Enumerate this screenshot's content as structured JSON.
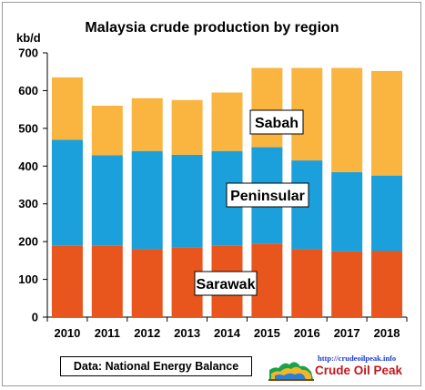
{
  "chart_data": {
    "type": "bar",
    "stacked": true,
    "title": "Malaysia crude production by region",
    "ylabel": "kb/d",
    "xlabel": "",
    "ylim": [
      0,
      700
    ],
    "yticks": [
      0,
      100,
      200,
      300,
      400,
      500,
      600,
      700
    ],
    "grid": false,
    "categories": [
      "2010",
      "2011",
      "2012",
      "2013",
      "2014",
      "2015",
      "2016",
      "2017",
      "2018"
    ],
    "series": [
      {
        "name": "Sarawak",
        "color": "#E8561E",
        "values": [
          190,
          189,
          180,
          185,
          190,
          195,
          180,
          174,
          175
        ]
      },
      {
        "name": "Peninsular",
        "color": "#1BA0DB",
        "values": [
          280,
          240,
          260,
          245,
          250,
          255,
          235,
          210,
          200
        ]
      },
      {
        "name": "Sabah",
        "color": "#F9B53F",
        "values": [
          165,
          131,
          140,
          145,
          155,
          210,
          245,
          276,
          277
        ]
      }
    ],
    "annotations": [
      "Sabah",
      "Peninsular",
      "Sarawak"
    ],
    "source": "Data: National Energy Balance"
  },
  "branding": {
    "url": "http://crudeoilpeak.info",
    "name": "Crude Oil Peak"
  }
}
